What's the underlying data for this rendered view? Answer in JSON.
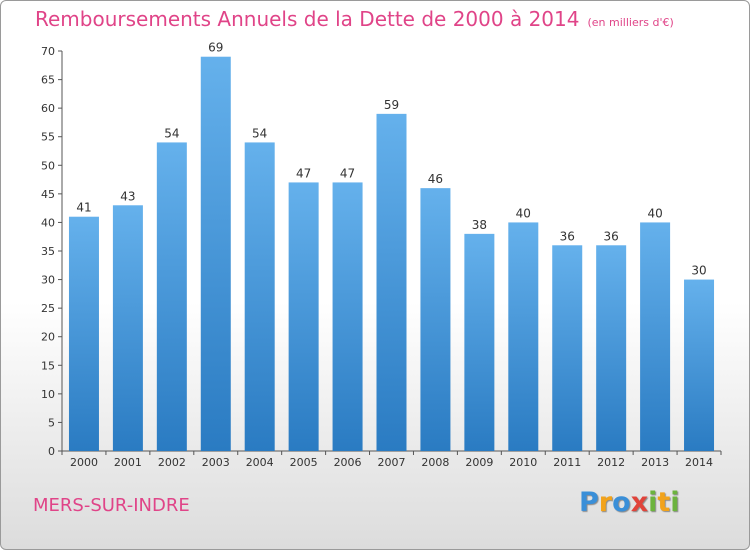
{
  "title": "Remboursements Annuels de la Dette de 2000 à 2014",
  "subtitle": "(en milliers d'€)",
  "location": "MERS-SUR-INDRE",
  "logo": {
    "text": "Proxiti",
    "letters": [
      {
        "char": "P",
        "color": "#3a8fd8"
      },
      {
        "char": "r",
        "color": "#f2a31b"
      },
      {
        "char": "o",
        "color": "#3a8fd8"
      },
      {
        "char": "x",
        "color": "#e0433a"
      },
      {
        "char": "i",
        "color": "#6cb33e"
      },
      {
        "char": "t",
        "color": "#f2a31b"
      },
      {
        "char": "i",
        "color": "#6cb33e"
      }
    ]
  },
  "colors": {
    "bar_top": "#65b1ec",
    "bar_bottom": "#2a7bc2",
    "title": "#e04488"
  },
  "chart_data": {
    "type": "bar",
    "title": "Remboursements Annuels de la Dette de 2000 à 2014",
    "subtitle": "(en milliers d'€)",
    "xlabel": "",
    "ylabel": "",
    "categories": [
      "2000",
      "2001",
      "2002",
      "2003",
      "2004",
      "2005",
      "2006",
      "2007",
      "2008",
      "2009",
      "2010",
      "2011",
      "2012",
      "2013",
      "2014"
    ],
    "values": [
      41,
      43,
      54,
      69,
      54,
      47,
      47,
      59,
      46,
      38,
      40,
      36,
      36,
      40,
      30
    ],
    "ylim": [
      0,
      70
    ],
    "yticks": [
      0,
      5,
      10,
      15,
      20,
      25,
      30,
      35,
      40,
      45,
      50,
      55,
      60,
      65,
      70
    ],
    "grid": false,
    "legend": "none"
  }
}
